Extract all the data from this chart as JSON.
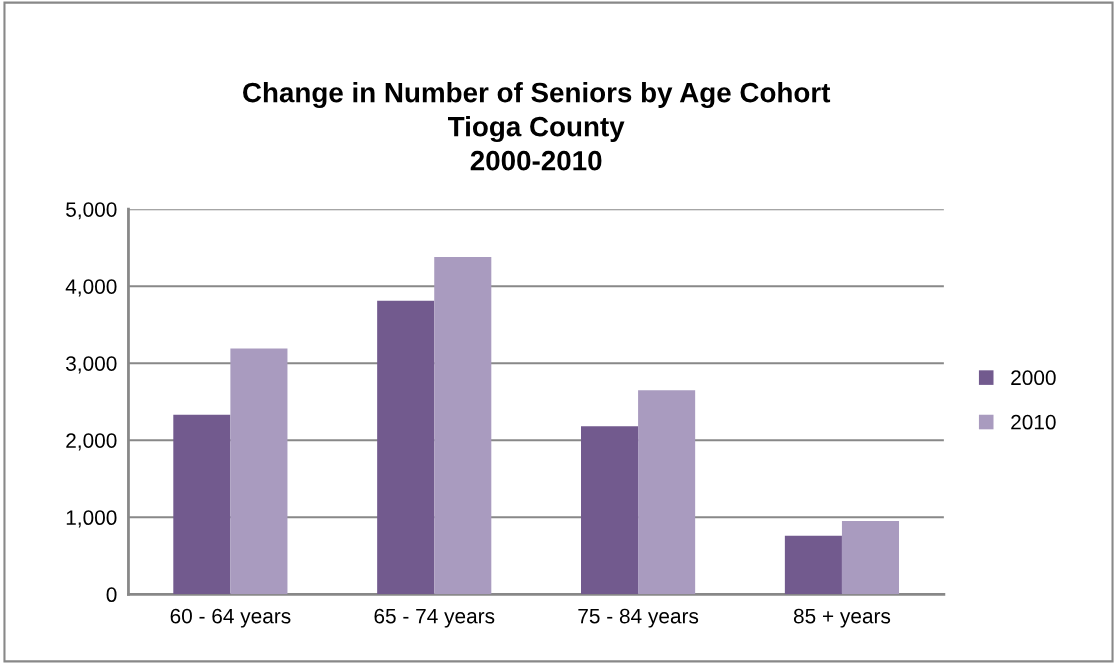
{
  "chart_data": {
    "type": "bar",
    "title": "Change in Number of Seniors by Age Cohort\nTioga County\n2000-2010",
    "categories": [
      "60 - 64 years",
      "65 - 74 years",
      "75 - 84 years",
      "85 + years"
    ],
    "series": [
      {
        "name": "2000",
        "color": "#725a8e",
        "values": [
          2330,
          3810,
          2180,
          760
        ]
      },
      {
        "name": "2010",
        "color": "#a99bbf",
        "values": [
          3190,
          4380,
          2650,
          950
        ]
      }
    ],
    "ylim": [
      0,
      5000
    ],
    "yticks": [
      {
        "value": 0,
        "label": "0"
      },
      {
        "value": 1000,
        "label": "1,000"
      },
      {
        "value": 2000,
        "label": "2,000"
      },
      {
        "value": 3000,
        "label": "3,000"
      },
      {
        "value": 4000,
        "label": "4,000"
      },
      {
        "value": 5000,
        "label": "5,000"
      }
    ],
    "grid": "y",
    "legend": "right"
  }
}
